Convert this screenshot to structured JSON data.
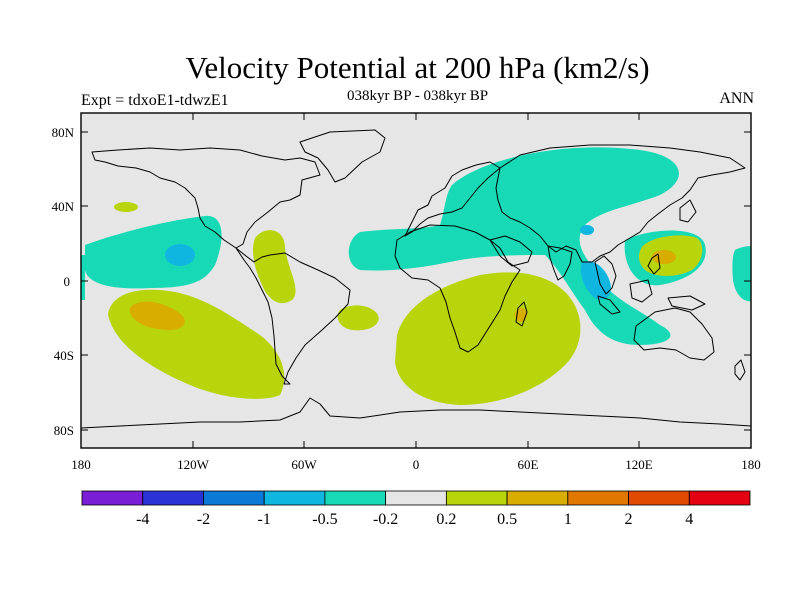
{
  "header": {
    "title": "Velocity Potential at 200 hPa (km2/s)",
    "subtitle": "038kyr BP - 038kyr BP",
    "left_label": "Expt = tdxoE1-tdwzE1",
    "right_label": "ANN"
  },
  "axes": {
    "lat_ticks": [
      "80N",
      "40N",
      "0",
      "40S",
      "80S"
    ],
    "lon_ticks": [
      "180",
      "120W",
      "60W",
      "0",
      "60E",
      "120E",
      "180"
    ]
  },
  "colorbar": {
    "colors": [
      "#7a1ed6",
      "#2b33d4",
      "#0b7ad6",
      "#0fb6e0",
      "#17d9b6",
      "#e6e6e6",
      "#b8d40a",
      "#d9ac00",
      "#e07800",
      "#e04a00",
      "#e30010"
    ],
    "labels": [
      "-4",
      "-2",
      "-1",
      "-0.5",
      "-0.2",
      "0.2",
      "0.5",
      "1",
      "2",
      "4"
    ]
  },
  "chart_data": {
    "type": "contour-map",
    "title": "Velocity Potential at 200 hPa (km2/s)",
    "subtitle": "038kyr BP - 038kyr BP",
    "experiment": "Expt = tdxoE1-tdwzE1",
    "season": "ANN",
    "projection": "cylindrical equidistant",
    "lon_range": [
      -180,
      180
    ],
    "lat_range": [
      -90,
      90
    ],
    "levels": [
      -4,
      -2,
      -1,
      -0.5,
      -0.2,
      0.2,
      0.5,
      1,
      2,
      4
    ],
    "features": [
      {
        "region": "Eurasia / North Pacific",
        "range": "-0.5 to -0.2"
      },
      {
        "region": "Bay of Bengal / Indonesia",
        "range": "-1 to -0.5"
      },
      {
        "region": "Southeast Asia / Maritime Continent",
        "range": "-0.5 to -0.2"
      },
      {
        "region": "Eastern Tropical Pacific",
        "range": "-1 to -0.5"
      },
      {
        "region": "Tropical Atlantic / North Africa",
        "range": "-0.5 to -0.2"
      },
      {
        "region": "South Pacific",
        "range": "0.2 to 1"
      },
      {
        "region": "Southern Africa / Indian Ocean",
        "range": "0.2 to 1"
      },
      {
        "region": "Western Pacific 10N",
        "range": "0.5 to 1"
      },
      {
        "region": "Central America / Caribbean",
        "range": "0.2 to 0.5"
      },
      {
        "region": "Subtropical South Atlantic",
        "range": "0.2 to 0.5"
      }
    ]
  }
}
